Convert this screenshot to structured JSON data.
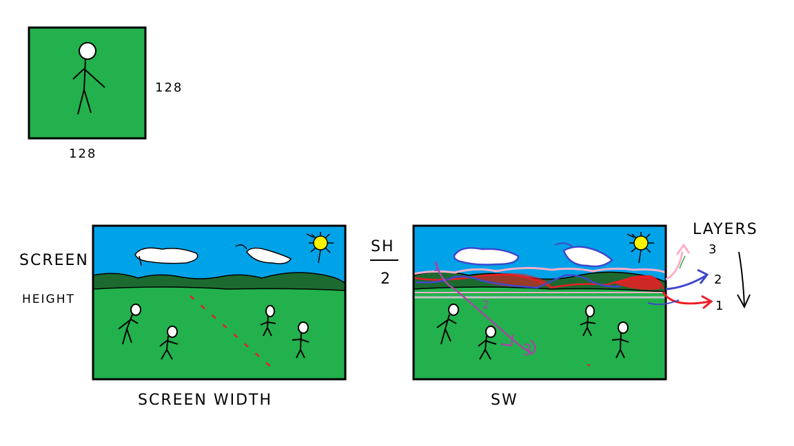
{
  "sprite": {
    "width_label": "128",
    "height_label": "128"
  },
  "screen_left": {
    "side_label_line1": "SCREEN",
    "side_label_line2": "HEIGHT",
    "bottom_label": "SCREEN WIDTH"
  },
  "screen_right": {
    "half_label_top": "SH",
    "half_label_bottom": "2",
    "bottom_label": "SW",
    "layers_title": "LAYERS",
    "layer_labels": [
      "3",
      "2",
      "1"
    ],
    "inner_layer_labels": [
      "1",
      "2",
      "3"
    ]
  },
  "colors": {
    "sky": "#00a2e8",
    "grass": "#22b14c",
    "hills": "#1d6a30",
    "layer1": "#ed1c24",
    "layer2": "#3f48cc",
    "layer3": "#ffaec9",
    "layer3_alt": "#a349a4",
    "sun": "#fff200"
  }
}
